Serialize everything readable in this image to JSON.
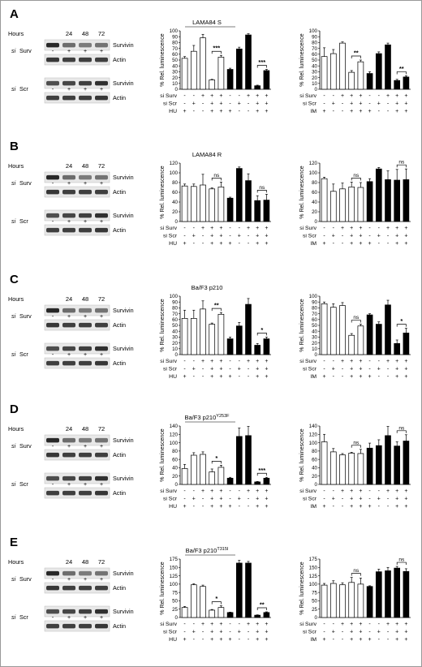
{
  "labels": {
    "hours": "Hours",
    "si_prefix": "si",
    "surv": "Surv",
    "scr": "Scr",
    "survivin": "Survivin",
    "actin": "Actin",
    "ylabel": "% Rel. luminescence",
    "row_surv": "si Surv",
    "row_scr": "si Scr",
    "ns": "ns",
    "plus": "+",
    "minus": "-"
  },
  "colors": {
    "open": "#ffffff",
    "filled": "#000000",
    "border": "#999999"
  },
  "panels": [
    {
      "letter": "A",
      "title": "LAMA84 S",
      "title_sup": "",
      "title_underline": true,
      "hours": [
        "24",
        "48",
        "72"
      ],
      "blot_signs": [
        "-",
        "+",
        "+",
        "+"
      ],
      "charts": [
        {
          "drug": "HU",
          "ylim": [
            0,
            100
          ],
          "yticks": [
            0,
            10,
            20,
            30,
            40,
            50,
            60,
            70,
            80,
            90,
            100
          ],
          "values": [
            53,
            65,
            88,
            16,
            55,
            34,
            69,
            93,
            6,
            32
          ],
          "errors": [
            3,
            10,
            6,
            1,
            3,
            2,
            3,
            2,
            1,
            2
          ],
          "brackets": [
            {
              "from": 3,
              "to": 4,
              "label": "***"
            },
            {
              "from": 8,
              "to": 9,
              "label": "***"
            }
          ]
        },
        {
          "drug": "IM",
          "ylim": [
            0,
            100
          ],
          "yticks": [
            0,
            10,
            20,
            30,
            40,
            50,
            60,
            70,
            80,
            90,
            100
          ],
          "values": [
            56,
            61,
            79,
            29,
            47,
            27,
            61,
            76,
            15,
            21
          ],
          "errors": [
            15,
            7,
            2,
            3,
            3,
            3,
            3,
            3,
            2,
            2
          ],
          "brackets": [
            {
              "from": 3,
              "to": 4,
              "label": "**"
            },
            {
              "from": 8,
              "to": 9,
              "label": "**"
            }
          ]
        }
      ],
      "row_signs": {
        "surv": [
          "-",
          "-",
          "+",
          "+",
          "+",
          "-",
          "-",
          "+",
          "+",
          "+"
        ],
        "scr": [
          "-",
          "+",
          "-",
          "+",
          "+",
          "-",
          "+",
          "-",
          "+",
          "+"
        ],
        "drug": [
          "+",
          "-",
          "-",
          "+",
          "+",
          "+",
          "-",
          "-",
          "+",
          "+"
        ]
      }
    },
    {
      "letter": "B",
      "title": "LAMA84 R",
      "title_sup": "",
      "title_underline": false,
      "hours": [
        "24",
        "48",
        "72"
      ],
      "blot_signs": [
        "-",
        "+",
        "+",
        "+"
      ],
      "charts": [
        {
          "drug": "HU",
          "ylim": [
            0,
            120
          ],
          "yticks": [
            0,
            20,
            40,
            60,
            80,
            100,
            120
          ],
          "values": [
            73,
            72,
            75,
            67,
            71,
            48,
            109,
            84,
            43,
            44
          ],
          "errors": [
            4,
            5,
            22,
            2,
            10,
            2,
            3,
            14,
            10,
            12
          ],
          "brackets": [
            {
              "from": 3,
              "to": 4,
              "label": "ns"
            },
            {
              "from": 8,
              "to": 9,
              "label": "ns"
            }
          ]
        },
        {
          "drug": "IM",
          "ylim": [
            0,
            120
          ],
          "yticks": [
            0,
            20,
            40,
            60,
            80,
            100,
            120
          ],
          "values": [
            88,
            62,
            67,
            71,
            70,
            82,
            108,
            86,
            85,
            86
          ],
          "errors": [
            3,
            15,
            12,
            10,
            10,
            6,
            3,
            18,
            22,
            22
          ],
          "brackets": [
            {
              "from": 3,
              "to": 4,
              "label": "ns"
            },
            {
              "from": 8,
              "to": 9,
              "label": "ns"
            }
          ]
        }
      ],
      "row_signs": {
        "surv": [
          "-",
          "-",
          "+",
          "+",
          "+",
          "-",
          "-",
          "+",
          "+",
          "+"
        ],
        "scr": [
          "-",
          "+",
          "-",
          "+",
          "+",
          "-",
          "+",
          "-",
          "+",
          "+"
        ],
        "drug": [
          "+",
          "-",
          "-",
          "+",
          "+",
          "+",
          "-",
          "-",
          "+",
          "+"
        ]
      }
    },
    {
      "letter": "C",
      "title": "Ba/F3 p210",
      "title_sup": "",
      "title_underline": false,
      "hours": [
        "24",
        "48",
        "72"
      ],
      "blot_signs": [
        "-",
        "+",
        "+",
        "+"
      ],
      "charts": [
        {
          "drug": "HU",
          "ylim": [
            0,
            100
          ],
          "yticks": [
            0,
            10,
            20,
            30,
            40,
            50,
            60,
            70,
            80,
            90,
            100
          ],
          "values": [
            62,
            62,
            78,
            52,
            69,
            27,
            49,
            86,
            16,
            27
          ],
          "errors": [
            14,
            14,
            14,
            2,
            3,
            3,
            6,
            10,
            3,
            3
          ],
          "brackets": [
            {
              "from": 3,
              "to": 4,
              "label": "**"
            },
            {
              "from": 8,
              "to": 9,
              "label": "*"
            }
          ]
        },
        {
          "drug": "IM",
          "ylim": [
            0,
            100
          ],
          "yticks": [
            0,
            10,
            20,
            30,
            40,
            50,
            60,
            70,
            80,
            90,
            100
          ],
          "values": [
            87,
            81,
            84,
            33,
            49,
            68,
            52,
            85,
            19,
            37
          ],
          "errors": [
            3,
            6,
            5,
            3,
            3,
            2,
            4,
            8,
            6,
            8
          ],
          "brackets": [
            {
              "from": 3,
              "to": 4,
              "label": "ns"
            },
            {
              "from": 8,
              "to": 9,
              "label": "*"
            }
          ]
        }
      ],
      "row_signs": {
        "surv": [
          "-",
          "-",
          "+",
          "+",
          "+",
          "-",
          "-",
          "+",
          "+",
          "+"
        ],
        "scr": [
          "-",
          "+",
          "-",
          "+",
          "+",
          "-",
          "+",
          "-",
          "+",
          "+"
        ],
        "drug": [
          "+",
          "-",
          "-",
          "+",
          "+",
          "+",
          "-",
          "-",
          "+",
          "+"
        ]
      }
    },
    {
      "letter": "D",
      "title": "Ba/F3 p210",
      "title_sup": "Y253F",
      "title_underline": true,
      "hours": [
        "24",
        "48",
        "72"
      ],
      "blot_signs": [
        "-",
        "+",
        "+",
        "+"
      ],
      "charts": [
        {
          "drug": "HU",
          "ylim": [
            0,
            140
          ],
          "yticks": [
            0,
            20,
            40,
            60,
            80,
            100,
            120,
            140
          ],
          "values": [
            38,
            70,
            72,
            30,
            41,
            15,
            115,
            117,
            6,
            15
          ],
          "errors": [
            10,
            6,
            6,
            7,
            5,
            2,
            20,
            22,
            1,
            2
          ],
          "brackets": [
            {
              "from": 3,
              "to": 4,
              "label": "*"
            },
            {
              "from": 8,
              "to": 9,
              "label": "***"
            }
          ]
        },
        {
          "drug": "IM",
          "ylim": [
            0,
            140
          ],
          "yticks": [
            0,
            20,
            40,
            60,
            80,
            100,
            120,
            140
          ],
          "values": [
            102,
            78,
            71,
            75,
            74,
            87,
            93,
            117,
            92,
            104
          ],
          "errors": [
            18,
            8,
            3,
            2,
            10,
            12,
            14,
            22,
            10,
            15
          ],
          "brackets": [
            {
              "from": 3,
              "to": 4,
              "label": "ns"
            },
            {
              "from": 8,
              "to": 9,
              "label": "ns"
            }
          ]
        }
      ],
      "row_signs": {
        "surv": [
          "-",
          "-",
          "+",
          "+",
          "+",
          "-",
          "-",
          "+",
          "+",
          "+"
        ],
        "scr": [
          "-",
          "+",
          "-",
          "+",
          "+",
          "-",
          "+",
          "-",
          "+",
          "+"
        ],
        "drug": [
          "+",
          "-",
          "-",
          "+",
          "+",
          "+",
          "-",
          "-",
          "+",
          "+"
        ]
      }
    },
    {
      "letter": "E",
      "title": "Ba/F3 p210",
      "title_sup": "T315I",
      "title_underline": true,
      "hours": [
        "24",
        "48",
        "72"
      ],
      "blot_signs": [
        "-",
        "+",
        "+",
        "+"
      ],
      "charts": [
        {
          "drug": "HU",
          "ylim": [
            0,
            175
          ],
          "yticks": [
            0,
            25,
            50,
            75,
            100,
            125,
            150,
            175
          ],
          "values": [
            30,
            98,
            93,
            22,
            30,
            15,
            163,
            163,
            7,
            15
          ],
          "errors": [
            3,
            3,
            4,
            2,
            5,
            1,
            8,
            5,
            1,
            2
          ],
          "brackets": [
            {
              "from": 3,
              "to": 4,
              "label": "*"
            },
            {
              "from": 8,
              "to": 9,
              "label": "**"
            }
          ]
        },
        {
          "drug": "IM",
          "ylim": [
            0,
            175
          ],
          "yticks": [
            0,
            25,
            50,
            75,
            100,
            125,
            150,
            175
          ],
          "values": [
            97,
            102,
            98,
            105,
            100,
            93,
            137,
            140,
            148,
            138
          ],
          "errors": [
            5,
            8,
            6,
            15,
            18,
            2,
            8,
            10,
            5,
            8
          ],
          "brackets": [
            {
              "from": 3,
              "to": 4,
              "label": "ns"
            },
            {
              "from": 8,
              "to": 9,
              "label": "ns"
            }
          ]
        }
      ],
      "row_signs": {
        "surv": [
          "-",
          "-",
          "+",
          "+",
          "+",
          "-",
          "-",
          "+",
          "+",
          "+"
        ],
        "scr": [
          "-",
          "+",
          "-",
          "+",
          "+",
          "-",
          "+",
          "-",
          "+",
          "+"
        ],
        "drug": [
          "+",
          "-",
          "-",
          "+",
          "+",
          "+",
          "-",
          "-",
          "+",
          "+"
        ]
      }
    }
  ]
}
